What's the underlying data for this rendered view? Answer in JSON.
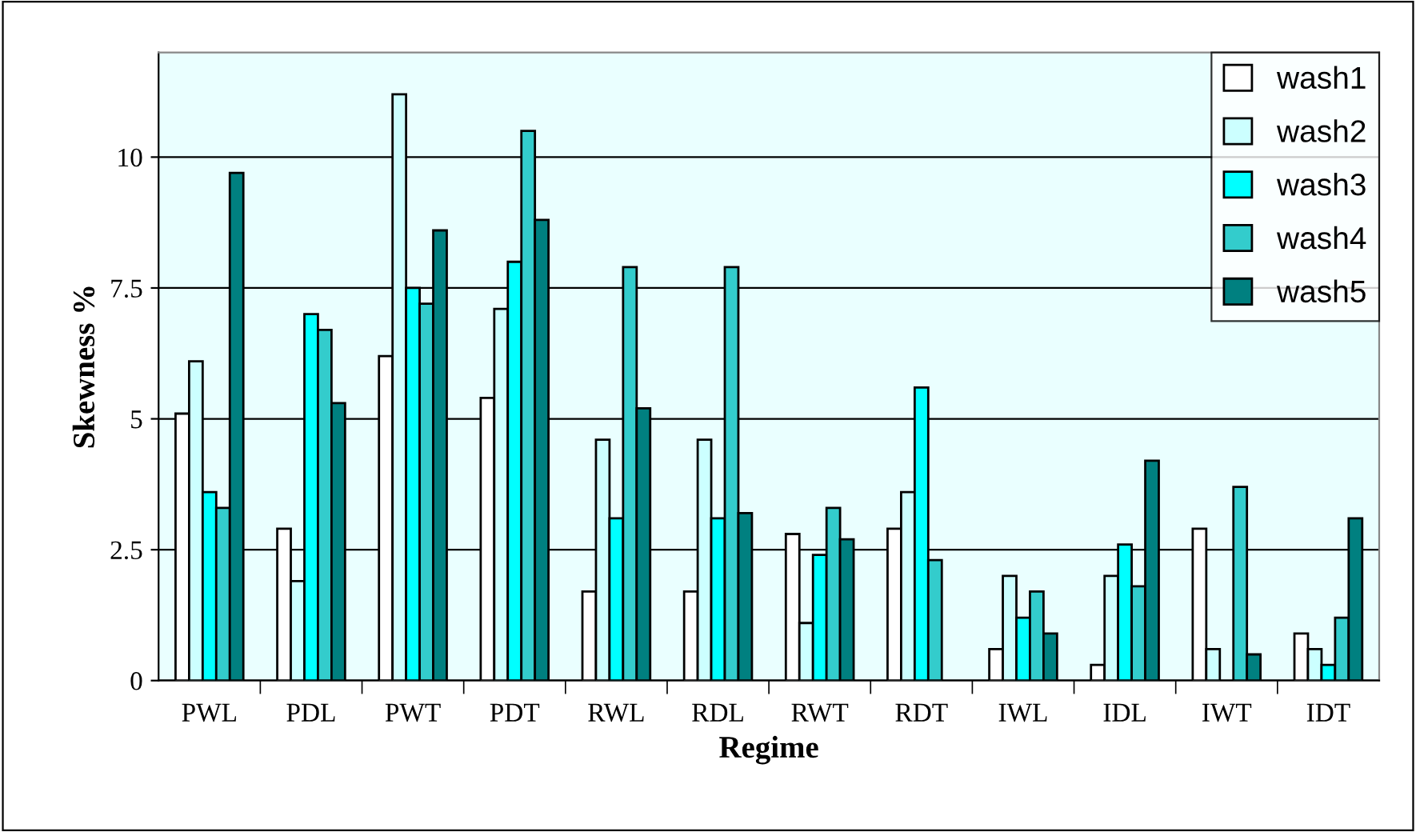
{
  "chart_data": {
    "type": "bar",
    "xlabel": "Regime",
    "ylabel": "Skewness %",
    "categories": [
      "PWL",
      "PDL",
      "PWT",
      "PDT",
      "RWL",
      "RDL",
      "RWT",
      "RDT",
      "IWL",
      "IDL",
      "IWT",
      "IDT"
    ],
    "series": [
      {
        "name": "wash1",
        "color": "#ffffff",
        "values": [
          5.1,
          2.9,
          6.2,
          5.4,
          1.7,
          1.7,
          2.8,
          2.9,
          0.6,
          0.3,
          2.9,
          0.9
        ]
      },
      {
        "name": "wash2",
        "color": "#ccffff",
        "values": [
          6.1,
          1.9,
          11.2,
          7.1,
          4.6,
          4.6,
          1.1,
          3.6,
          2.0,
          2.0,
          0.6,
          0.6
        ]
      },
      {
        "name": "wash3",
        "color": "#00ffff",
        "values": [
          3.6,
          7.0,
          7.5,
          8.0,
          3.1,
          3.1,
          2.4,
          5.6,
          1.2,
          2.6,
          null,
          0.3
        ]
      },
      {
        "name": "wash4",
        "color": "#33cccc",
        "values": [
          3.3,
          6.7,
          7.2,
          10.5,
          7.9,
          7.9,
          3.3,
          2.3,
          1.7,
          1.8,
          3.7,
          1.2
        ]
      },
      {
        "name": "wash5",
        "color": "#008080",
        "values": [
          9.7,
          5.3,
          8.6,
          8.8,
          5.2,
          3.2,
          2.7,
          null,
          0.9,
          4.2,
          0.5,
          3.1
        ]
      }
    ],
    "ylim": [
      0,
      12
    ],
    "yticks": [
      0,
      2.5,
      5,
      7.5,
      10
    ],
    "grid": "y",
    "legend": "top right"
  }
}
